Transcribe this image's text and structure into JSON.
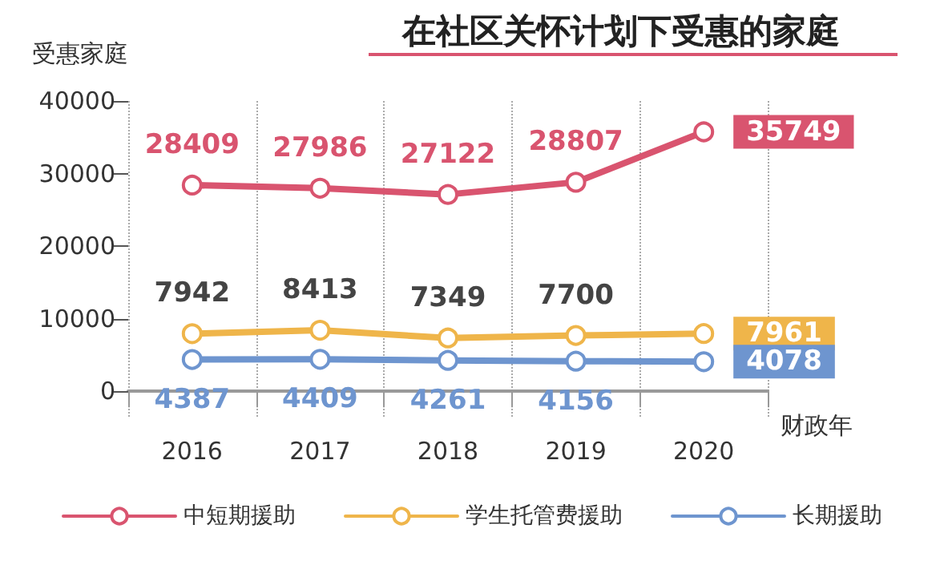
{
  "chart_data": {
    "type": "line",
    "title": "在社区关怀计划下受惠的家庭",
    "ylabel": "受惠家庭",
    "xlabel": "财政年",
    "categories": [
      "2016",
      "2017",
      "2018",
      "2019",
      "2020"
    ],
    "series": [
      {
        "name": "中短期援助",
        "color": "#d9546f",
        "values": [
          28409,
          27986,
          27122,
          28807,
          35749
        ]
      },
      {
        "name": "学生托管费援助",
        "color": "#efb54a",
        "values": [
          7942,
          8413,
          7349,
          7700,
          7961
        ]
      },
      {
        "name": "长期援助",
        "color": "#6e95cf",
        "values": [
          4387,
          4409,
          4261,
          4156,
          4078
        ]
      }
    ],
    "ylim": [
      -3500,
      40000
    ],
    "yticks": [
      0,
      10000,
      20000,
      30000,
      40000
    ],
    "grid": "x",
    "legend": "bottom",
    "marker": "circle",
    "line_style": "solid",
    "data_labels": true
  }
}
